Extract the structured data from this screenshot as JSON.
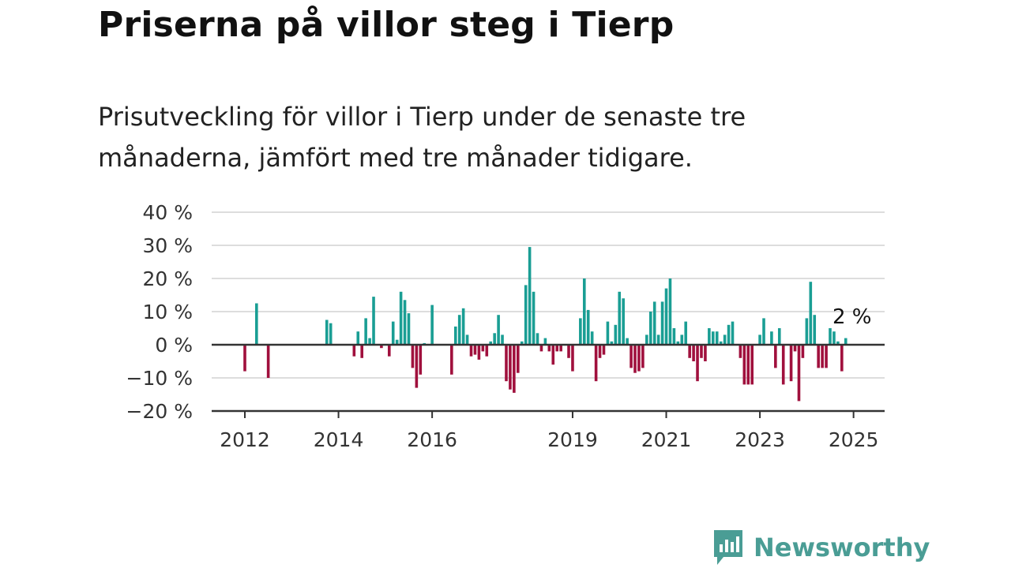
{
  "title": "Priserna på villor steg i Tierp",
  "subtitle": "Prisutveckling för villor i Tierp under de senaste tre månaderna, jämfört med tre månader tidigare.",
  "brand": "Newsworthy",
  "colors": {
    "positive": "#1a9e94",
    "negative": "#a0103d",
    "grid": "#dddddd",
    "axis": "#333333",
    "brand": "#4a9d95"
  },
  "chart_data": {
    "type": "bar",
    "title": "Priserna på villor steg i Tierp",
    "xlabel": "",
    "ylabel": "",
    "ylim": [
      -20,
      40
    ],
    "yticks": [
      40,
      30,
      20,
      10,
      0,
      -10,
      -20
    ],
    "ytick_labels": [
      "40 %",
      "30 %",
      "20 %",
      "10 %",
      "0 %",
      "−10 %",
      "−20 %"
    ],
    "xticks": [
      "2012",
      "2014",
      "2016",
      "2019",
      "2021",
      "2023",
      "2025"
    ],
    "last_value_label": "2 %",
    "grid": true,
    "x_unit": "month index since January 2012",
    "bars": [
      {
        "x": 0,
        "v": -8
      },
      {
        "x": 3,
        "v": 12.5
      },
      {
        "x": 6,
        "v": -10
      },
      {
        "x": 21,
        "v": 7.5
      },
      {
        "x": 22,
        "v": 6.5
      },
      {
        "x": 28,
        "v": -3.5
      },
      {
        "x": 29,
        "v": 4
      },
      {
        "x": 30,
        "v": -4
      },
      {
        "x": 31,
        "v": 8
      },
      {
        "x": 32,
        "v": 2
      },
      {
        "x": 33,
        "v": 14.5
      },
      {
        "x": 35,
        "v": -1
      },
      {
        "x": 37,
        "v": -3.5
      },
      {
        "x": 38,
        "v": 7
      },
      {
        "x": 39,
        "v": 1.5
      },
      {
        "x": 40,
        "v": 16
      },
      {
        "x": 41,
        "v": 13.5
      },
      {
        "x": 42,
        "v": 9.5
      },
      {
        "x": 43,
        "v": -7
      },
      {
        "x": 44,
        "v": -13
      },
      {
        "x": 45,
        "v": -9
      },
      {
        "x": 46,
        "v": 0.5
      },
      {
        "x": 48,
        "v": 12
      },
      {
        "x": 53,
        "v": -9
      },
      {
        "x": 54,
        "v": 5.5
      },
      {
        "x": 55,
        "v": 9
      },
      {
        "x": 56,
        "v": 11
      },
      {
        "x": 57,
        "v": 3
      },
      {
        "x": 58,
        "v": -3.5
      },
      {
        "x": 59,
        "v": -3
      },
      {
        "x": 60,
        "v": -4.5
      },
      {
        "x": 61,
        "v": -2
      },
      {
        "x": 62,
        "v": -3.5
      },
      {
        "x": 63,
        "v": 1
      },
      {
        "x": 64,
        "v": 3.5
      },
      {
        "x": 65,
        "v": 9
      },
      {
        "x": 66,
        "v": 3
      },
      {
        "x": 67,
        "v": -11
      },
      {
        "x": 68,
        "v": -13.5
      },
      {
        "x": 69,
        "v": -14.5
      },
      {
        "x": 70,
        "v": -8.5
      },
      {
        "x": 71,
        "v": 1
      },
      {
        "x": 72,
        "v": 18
      },
      {
        "x": 73,
        "v": 29.5
      },
      {
        "x": 74,
        "v": 16
      },
      {
        "x": 75,
        "v": 3.5
      },
      {
        "x": 76,
        "v": -2
      },
      {
        "x": 77,
        "v": 2
      },
      {
        "x": 78,
        "v": -2
      },
      {
        "x": 79,
        "v": -6
      },
      {
        "x": 80,
        "v": -2
      },
      {
        "x": 81,
        "v": -2
      },
      {
        "x": 83,
        "v": -4
      },
      {
        "x": 84,
        "v": -8
      },
      {
        "x": 86,
        "v": 8
      },
      {
        "x": 87,
        "v": 20
      },
      {
        "x": 88,
        "v": 10.5
      },
      {
        "x": 89,
        "v": 4
      },
      {
        "x": 90,
        "v": -11
      },
      {
        "x": 91,
        "v": -4
      },
      {
        "x": 92,
        "v": -3
      },
      {
        "x": 93,
        "v": 7
      },
      {
        "x": 94,
        "v": 1
      },
      {
        "x": 95,
        "v": 6
      },
      {
        "x": 96,
        "v": 16
      },
      {
        "x": 97,
        "v": 14
      },
      {
        "x": 98,
        "v": 2
      },
      {
        "x": 99,
        "v": -7
      },
      {
        "x": 100,
        "v": -8.5
      },
      {
        "x": 101,
        "v": -8
      },
      {
        "x": 102,
        "v": -7
      },
      {
        "x": 103,
        "v": 3
      },
      {
        "x": 104,
        "v": 10
      },
      {
        "x": 105,
        "v": 13
      },
      {
        "x": 106,
        "v": 3
      },
      {
        "x": 107,
        "v": 13
      },
      {
        "x": 108,
        "v": 17
      },
      {
        "x": 109,
        "v": 20
      },
      {
        "x": 110,
        "v": 5
      },
      {
        "x": 111,
        "v": 1
      },
      {
        "x": 112,
        "v": 3
      },
      {
        "x": 113,
        "v": 7
      },
      {
        "x": 114,
        "v": -4
      },
      {
        "x": 115,
        "v": -5
      },
      {
        "x": 116,
        "v": -11
      },
      {
        "x": 117,
        "v": -4
      },
      {
        "x": 118,
        "v": -5
      },
      {
        "x": 119,
        "v": 5
      },
      {
        "x": 120,
        "v": 4
      },
      {
        "x": 121,
        "v": 4
      },
      {
        "x": 122,
        "v": 1
      },
      {
        "x": 123,
        "v": 3
      },
      {
        "x": 124,
        "v": 6
      },
      {
        "x": 125,
        "v": 7
      },
      {
        "x": 127,
        "v": -4
      },
      {
        "x": 128,
        "v": -12
      },
      {
        "x": 129,
        "v": -12
      },
      {
        "x": 130,
        "v": -12
      },
      {
        "x": 132,
        "v": 3
      },
      {
        "x": 133,
        "v": 8
      },
      {
        "x": 135,
        "v": 4
      },
      {
        "x": 136,
        "v": -7
      },
      {
        "x": 137,
        "v": 5
      },
      {
        "x": 138,
        "v": -12
      },
      {
        "x": 140,
        "v": -11
      },
      {
        "x": 141,
        "v": -2
      },
      {
        "x": 142,
        "v": -17
      },
      {
        "x": 143,
        "v": -4
      },
      {
        "x": 144,
        "v": 8
      },
      {
        "x": 145,
        "v": 19
      },
      {
        "x": 146,
        "v": 9
      },
      {
        "x": 147,
        "v": -7
      },
      {
        "x": 148,
        "v": -7
      },
      {
        "x": 149,
        "v": -7
      },
      {
        "x": 150,
        "v": 5
      },
      {
        "x": 151,
        "v": 4
      },
      {
        "x": 152,
        "v": 1
      },
      {
        "x": 153,
        "v": -8
      },
      {
        "x": 154,
        "v": 2
      }
    ]
  }
}
